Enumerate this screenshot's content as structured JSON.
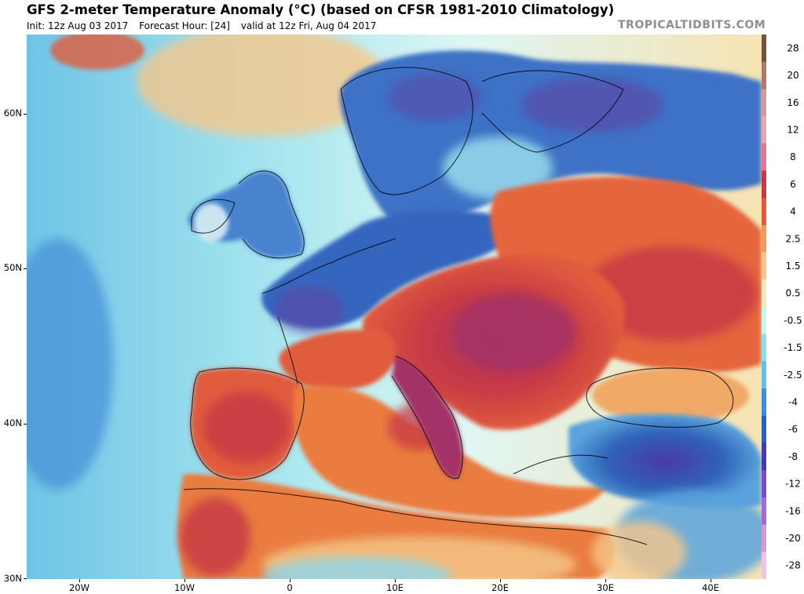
{
  "header": {
    "title": "GFS 2-meter Temperature Anomaly (°C) (based on CFSR 1981-2010 Climatology)",
    "init": "Init: 12z Aug 03 2017",
    "forecast_hour": "Forecast Hour: [24]",
    "valid": "valid at 12z Fri, Aug 04 2017"
  },
  "brand": "TROPICALTIDBITS.COM",
  "map": {
    "lat_labels": [
      "60N",
      "50N",
      "40N",
      "30N"
    ],
    "lon_labels": [
      "20W",
      "10W",
      "0",
      "10E",
      "20E",
      "30E",
      "40E"
    ],
    "colors": {
      "ocean_cold": "#4fa3e0",
      "ocean_cool": "#8fd8ec",
      "ocean_neutral": "#d8f4f4",
      "warm_land": "#f4c98a",
      "hot": "#e8743a",
      "very_hot": "#c73a3a",
      "extreme": "#a33368",
      "cold_land": "#3a70c8",
      "very_cold": "#5a4aa8"
    }
  },
  "colorbar": {
    "labels": [
      "28",
      "20",
      "16",
      "12",
      "8",
      "6",
      "4",
      "2.5",
      "1.5",
      "0.5",
      "-0.5",
      "-1.5",
      "-2.5",
      "-4",
      "-6",
      "-8",
      "-12",
      "-16",
      "-20",
      "-28"
    ],
    "colors": [
      "#7a4f3c",
      "#b07a6a",
      "#d49a9a",
      "#e6a6b8",
      "#e2788f",
      "#c23a45",
      "#e05b3e",
      "#f29a5a",
      "#f7c585",
      "#fbe9b5",
      "#c9f3f3",
      "#8fdfe8",
      "#63c0e6",
      "#3b8fd8",
      "#2c61b8",
      "#4a3aa4",
      "#7b4cc4",
      "#a46bd8",
      "#d39ad8",
      "#ecc4e4"
    ]
  }
}
